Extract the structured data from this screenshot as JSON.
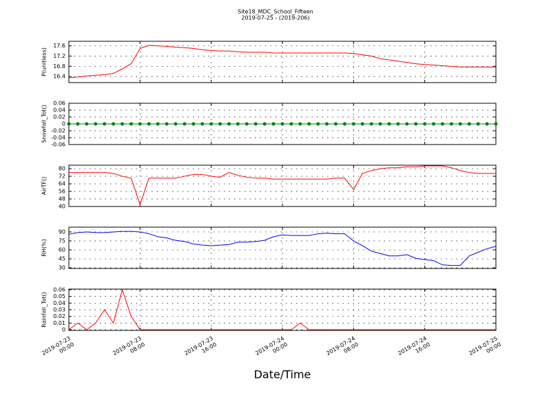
{
  "chart_data": {
    "type": "multi-line",
    "title": "Site18_MDC_School_Fifteen",
    "subtitle": "2019-07-25 - (2019-206)",
    "xlabel": "Date/Time",
    "x": [
      "2019-07-23 00:00",
      "2019-07-23 01:00",
      "2019-07-23 02:00",
      "2019-07-23 03:00",
      "2019-07-23 04:00",
      "2019-07-23 05:00",
      "2019-07-23 06:00",
      "2019-07-23 07:00",
      "2019-07-23 08:00",
      "2019-07-23 09:00",
      "2019-07-23 10:00",
      "2019-07-23 11:00",
      "2019-07-23 12:00",
      "2019-07-23 13:00",
      "2019-07-23 14:00",
      "2019-07-23 15:00",
      "2019-07-23 16:00",
      "2019-07-23 17:00",
      "2019-07-23 18:00",
      "2019-07-23 19:00",
      "2019-07-23 20:00",
      "2019-07-23 21:00",
      "2019-07-23 22:00",
      "2019-07-23 23:00",
      "2019-07-24 00:00",
      "2019-07-24 01:00",
      "2019-07-24 02:00",
      "2019-07-24 03:00",
      "2019-07-24 04:00",
      "2019-07-24 05:00",
      "2019-07-24 06:00",
      "2019-07-24 07:00",
      "2019-07-24 08:00",
      "2019-07-24 09:00",
      "2019-07-24 10:00",
      "2019-07-24 11:00",
      "2019-07-24 12:00",
      "2019-07-24 13:00",
      "2019-07-24 14:00",
      "2019-07-24 15:00",
      "2019-07-24 16:00",
      "2019-07-24 17:00",
      "2019-07-24 18:00",
      "2019-07-24 19:00",
      "2019-07-24 20:00",
      "2019-07-24 21:00",
      "2019-07-24 22:00",
      "2019-07-24 23:00",
      "2019-07-25 00:00"
    ],
    "xlim": [
      "2019-07-23 00:00",
      "2019-07-25 00:00"
    ],
    "xticks": [
      {
        "value": "2019-07-23 00:00",
        "label": "2019-07-23\n00:00"
      },
      {
        "value": "2019-07-23 08:00",
        "label": "2019-07-23\n08:00"
      },
      {
        "value": "2019-07-23 16:00",
        "label": "2019-07-23\n16:00"
      },
      {
        "value": "2019-07-24 00:00",
        "label": "2019-07-24\n00:00"
      },
      {
        "value": "2019-07-24 08:00",
        "label": "2019-07-24\n08:00"
      },
      {
        "value": "2019-07-24 16:00",
        "label": "2019-07-24\n16:00"
      },
      {
        "value": "2019-07-25 00:00",
        "label": "2019-07-25\n00:00"
      }
    ],
    "grid": true,
    "panels": [
      {
        "ylabel": "P(unitless)",
        "ylim": [
          16.16,
          17.78
        ],
        "yticks": [
          16.4,
          16.8,
          17.2,
          17.6
        ],
        "series": [
          {
            "color": "#ff0000",
            "values": [
              16.35,
              16.38,
              16.42,
              16.45,
              16.47,
              16.52,
              16.7,
              16.9,
              17.5,
              17.62,
              17.6,
              17.58,
              17.55,
              17.53,
              17.5,
              17.45,
              17.42,
              17.4,
              17.4,
              17.37,
              17.35,
              17.35,
              17.35,
              17.32,
              17.32,
              17.32,
              17.32,
              17.32,
              17.32,
              17.32,
              17.32,
              17.32,
              17.3,
              17.25,
              17.2,
              17.1,
              17.05,
              17.0,
              16.95,
              16.9,
              16.87,
              16.85,
              16.82,
              16.8,
              16.77,
              16.77,
              16.77,
              16.77,
              16.77
            ]
          }
        ]
      },
      {
        "ylabel": "Snowfall_Tot()",
        "ylim": [
          -0.06,
          0.06
        ],
        "yticks": [
          -0.06,
          -0.04,
          -0.02,
          0.0,
          0.02,
          0.04,
          0.06
        ],
        "series": [
          {
            "color": "#008000",
            "marker": true,
            "values": [
              0,
              0,
              0,
              0,
              0,
              0,
              0,
              0,
              0,
              0,
              0,
              0,
              0,
              0,
              0,
              0,
              0,
              0,
              0,
              0,
              0,
              0,
              0,
              0,
              0,
              0,
              0,
              0,
              0,
              0,
              0,
              0,
              0,
              0,
              0,
              0,
              0,
              0,
              0,
              0,
              0,
              0,
              0,
              0,
              0,
              0,
              0,
              0,
              0
            ]
          }
        ]
      },
      {
        "ylabel": "AirTF()",
        "ylim": [
          40,
          83.7
        ],
        "yticks": [
          40,
          48,
          56,
          64,
          72,
          80
        ],
        "series": [
          {
            "color": "#ff0000",
            "values": [
              76,
              76,
              76,
              76,
              76,
              75,
              72,
              70,
              42,
              70,
              70,
              70,
              70,
              72,
              74,
              74,
              72,
              71,
              76,
              73,
              71,
              70,
              70,
              69,
              69,
              69,
              69,
              69,
              69,
              69,
              70,
              70,
              58,
              75,
              78,
              80,
              81,
              81,
              82,
              82,
              83,
              83,
              83,
              81,
              78,
              76,
              75,
              75,
              75
            ]
          }
        ]
      },
      {
        "ylabel": "RH(%)",
        "ylim": [
          29,
          98
        ],
        "yticks": [
          30,
          45,
          60,
          75,
          90
        ],
        "series": [
          {
            "color": "#0000ff",
            "values": [
              86,
              89,
              90,
              89,
              89,
              90,
              91,
              91,
              90,
              87,
              82,
              80,
              76,
              74,
              70,
              68,
              67,
              68,
              69,
              73,
              73,
              74,
              76,
              82,
              85,
              84,
              84,
              84,
              87,
              88,
              87,
              87,
              75,
              67,
              58,
              54,
              50,
              50,
              52,
              46,
              44,
              42,
              35,
              34,
              34,
              50,
              56,
              62,
              66
            ]
          }
        ]
      },
      {
        "ylabel": "Rainfall_Tot()",
        "ylim": [
          -0.001,
          0.061
        ],
        "yticks": [
          0.0,
          0.01,
          0.02,
          0.03,
          0.04,
          0.05,
          0.06
        ],
        "series": [
          {
            "color": "#ff0000",
            "values": [
              0,
              0.01,
              0,
              0.01,
              0.03,
              0.01,
              0.06,
              0.02,
              0,
              0,
              0,
              0,
              0,
              0,
              0,
              0,
              0,
              0,
              0,
              0,
              0,
              0,
              0,
              0,
              0,
              0,
              0.01,
              0,
              0,
              0,
              0,
              0,
              0,
              0,
              0,
              0,
              0,
              0,
              0,
              0,
              0,
              0,
              0,
              0,
              0,
              0,
              0,
              0,
              0
            ]
          }
        ]
      }
    ]
  }
}
